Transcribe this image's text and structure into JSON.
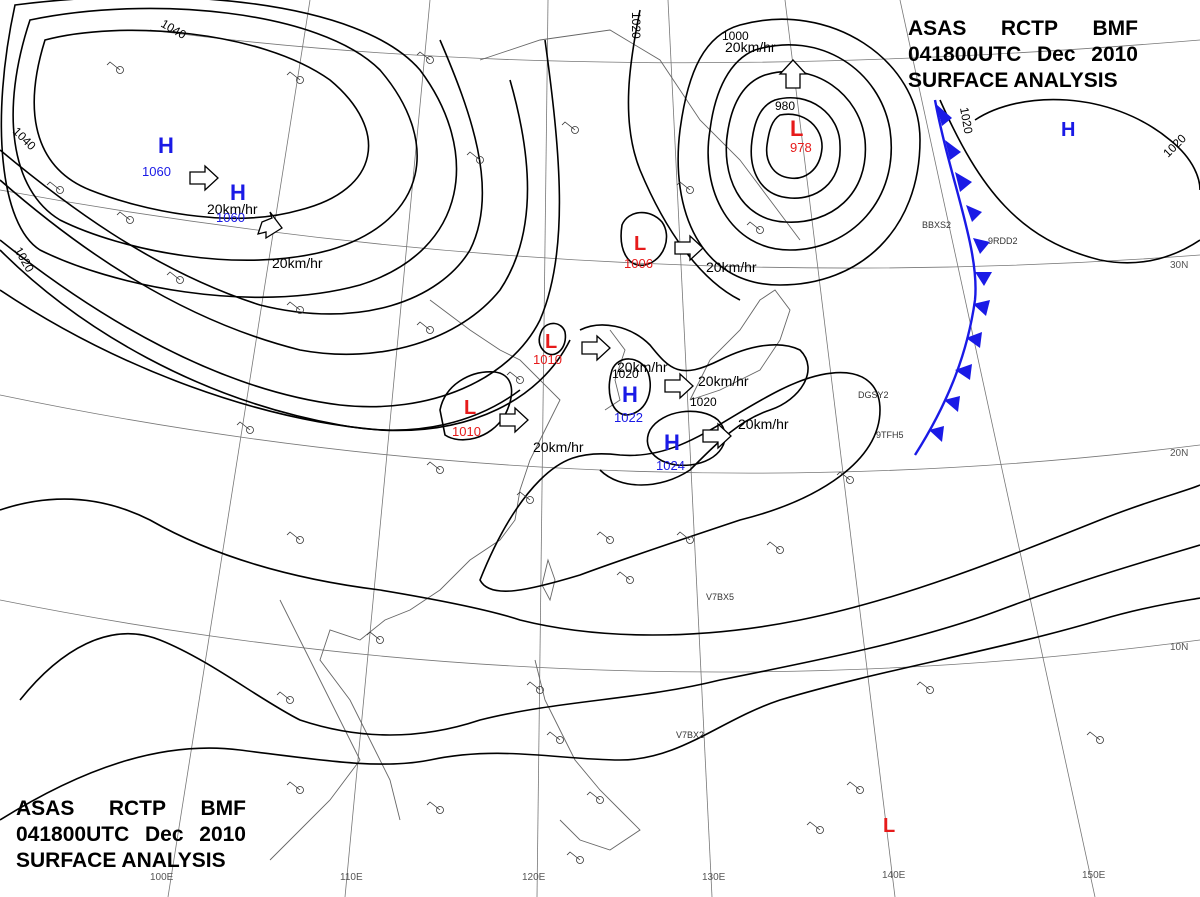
{
  "title": {
    "agency": "ASAS",
    "station": "RCTP",
    "code": "BMF",
    "time": "041800UTC",
    "month": "Dec",
    "year": "2010",
    "product": "SURFACE ANALYSIS"
  },
  "pressure_centers": [
    {
      "type": "H",
      "value": "1060",
      "color": "#1a1ae6"
    },
    {
      "type": "H",
      "value": "1060",
      "color": "#1a1ae6"
    },
    {
      "type": "L",
      "value": "978",
      "color": "#e61a1a"
    },
    {
      "type": "H",
      "value": "",
      "color": "#1a1ae6"
    },
    {
      "type": "L",
      "value": "1006",
      "color": "#e61a1a"
    },
    {
      "type": "L",
      "value": "1010",
      "color": "#e61a1a"
    },
    {
      "type": "L",
      "value": "1010",
      "color": "#e61a1a"
    },
    {
      "type": "H",
      "value": "1022",
      "color": "#1a1ae6"
    },
    {
      "type": "H",
      "value": "1024",
      "color": "#1a1ae6"
    },
    {
      "type": "L",
      "value": "",
      "color": "#e61a1a"
    }
  ],
  "movement_labels": [
    "20km/hr",
    "20km/hr",
    "20km/hr",
    "20km/hr",
    "20km/hr",
    "20km/hr",
    "20km/hr",
    "20km/hr",
    "20km/hr"
  ],
  "isobar_labels": [
    "1040",
    "1040",
    "1020",
    "1020",
    "1020",
    "1020",
    "1000",
    "980",
    "1020",
    "1020"
  ],
  "longitude_labels": [
    "110E",
    "120E",
    "130E",
    "140E",
    "150E",
    "100E"
  ],
  "latitude_labels": [
    "30N",
    "20N",
    "10N"
  ],
  "ship_codes": [
    "V7BX5",
    "V7BX2",
    "DGSY2",
    "9TFH5",
    "BBXS2",
    "9RDD2"
  ],
  "colors": {
    "high": "#1a1ae6",
    "low": "#e61a1a",
    "front": "#1a1ae6",
    "isobar": "#000000",
    "grid": "#666666",
    "coast": "#555555"
  }
}
